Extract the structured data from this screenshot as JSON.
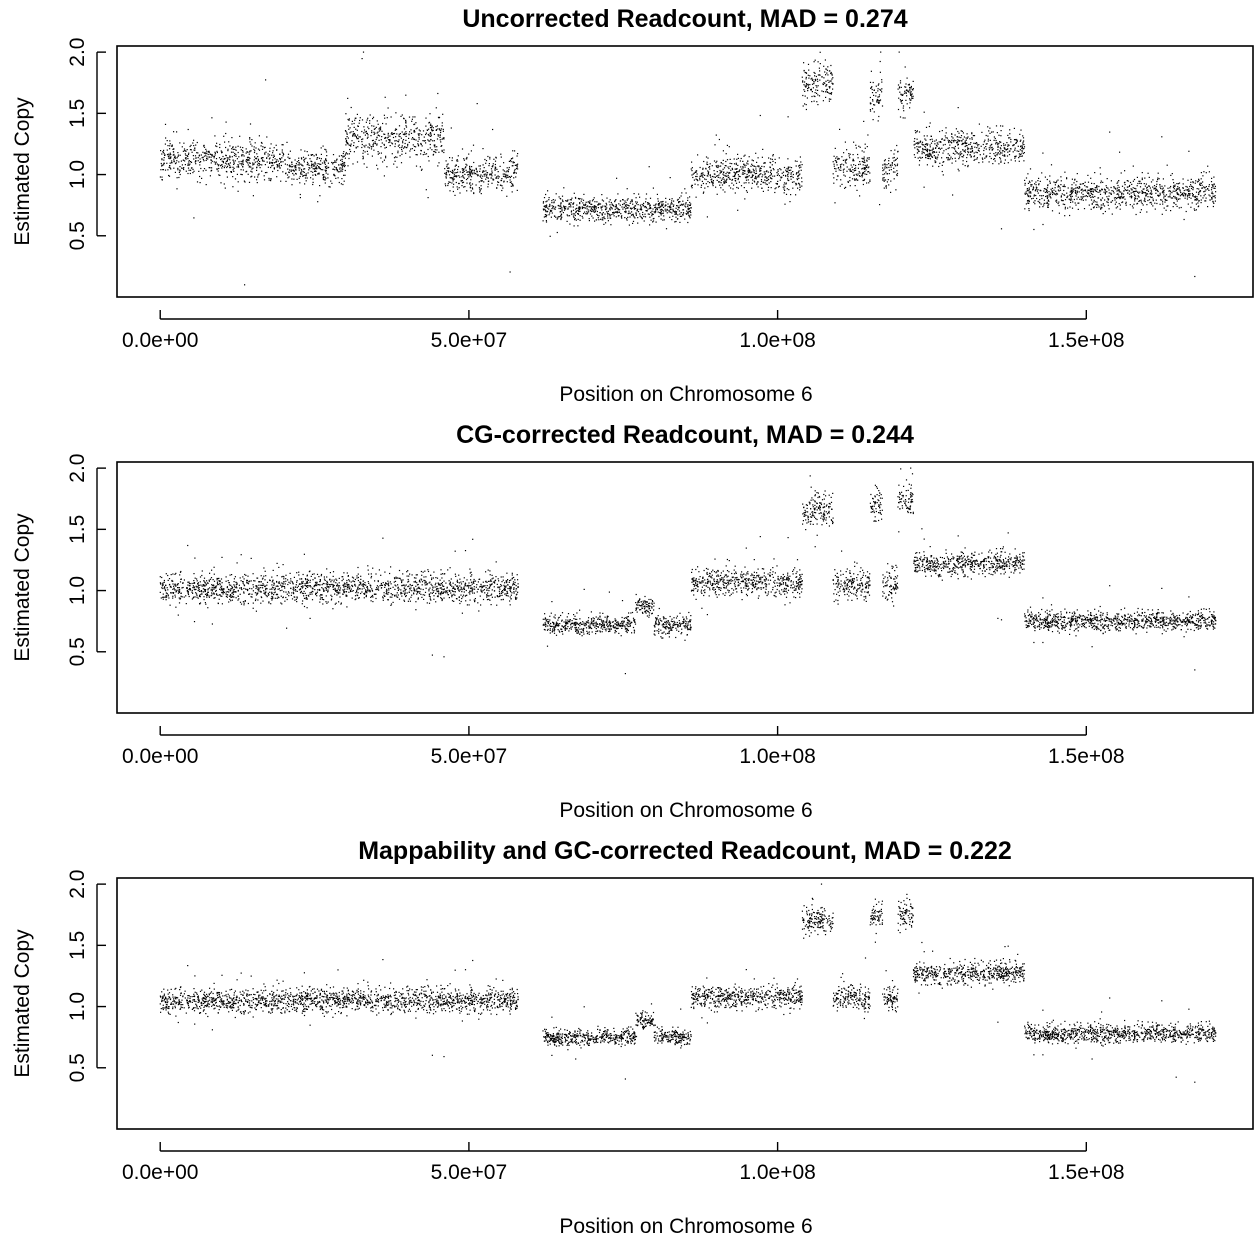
{
  "chart_data": [
    {
      "type": "scatter",
      "title": "Uncorrected Readcount, MAD =  0.274",
      "xlabel": "Position on Chromosome 6",
      "ylabel": "Estimated Copy",
      "xlim": [
        -7000000,
        177000000
      ],
      "ylim": [
        0.0,
        2.05
      ],
      "x_ticks": [
        0,
        50000000,
        100000000,
        150000000
      ],
      "x_tick_labels": [
        "0.0e+00",
        "5.0e+07",
        "1.0e+08",
        "1.5e+08"
      ],
      "y_ticks": [
        0.5,
        1.0,
        1.5,
        2.0
      ],
      "y_tick_labels": [
        "0.5",
        "1.0",
        "1.5",
        "2.0"
      ],
      "mad": 0.274,
      "point_color": "#000000",
      "segments": [
        {
          "x_start": 0,
          "x_end": 20000000,
          "level": 1.12,
          "spread": 0.14
        },
        {
          "x_start": 20000000,
          "x_end": 30000000,
          "level": 1.05,
          "spread": 0.12
        },
        {
          "x_start": 30000000,
          "x_end": 46000000,
          "level": 1.3,
          "spread": 0.18
        },
        {
          "x_start": 46000000,
          "x_end": 58000000,
          "level": 1.0,
          "spread": 0.14
        },
        {
          "x_start": 62000000,
          "x_end": 86000000,
          "level": 0.72,
          "spread": 0.09
        },
        {
          "x_start": 86000000,
          "x_end": 104000000,
          "level": 1.0,
          "spread": 0.13
        },
        {
          "x_start": 104000000,
          "x_end": 109000000,
          "level": 1.75,
          "spread": 0.15
        },
        {
          "x_start": 109000000,
          "x_end": 115000000,
          "level": 1.05,
          "spread": 0.14
        },
        {
          "x_start": 115000000,
          "x_end": 117000000,
          "level": 1.65,
          "spread": 0.18
        },
        {
          "x_start": 117000000,
          "x_end": 119500000,
          "level": 1.05,
          "spread": 0.14
        },
        {
          "x_start": 119500000,
          "x_end": 122000000,
          "level": 1.65,
          "spread": 0.16
        },
        {
          "x_start": 122000000,
          "x_end": 140000000,
          "level": 1.22,
          "spread": 0.13
        },
        {
          "x_start": 140000000,
          "x_end": 171000000,
          "level": 0.85,
          "spread": 0.12
        }
      ]
    },
    {
      "type": "scatter",
      "title": "CG-corrected Readcount, MAD =  0.244",
      "xlabel": "Position on Chromosome 6",
      "ylabel": "Estimated Copy",
      "xlim": [
        -7000000,
        177000000
      ],
      "ylim": [
        0.0,
        2.05
      ],
      "x_ticks": [
        0,
        50000000,
        100000000,
        150000000
      ],
      "x_tick_labels": [
        "0.0e+00",
        "5.0e+07",
        "1.0e+08",
        "1.5e+08"
      ],
      "y_ticks": [
        0.5,
        1.0,
        1.5,
        2.0
      ],
      "y_tick_labels": [
        "0.5",
        "1.0",
        "1.5",
        "2.0"
      ],
      "mad": 0.244,
      "point_color": "#000000",
      "segments": [
        {
          "x_start": 0,
          "x_end": 58000000,
          "level": 1.02,
          "spread": 0.11
        },
        {
          "x_start": 62000000,
          "x_end": 77000000,
          "level": 0.72,
          "spread": 0.07
        },
        {
          "x_start": 77000000,
          "x_end": 80000000,
          "level": 0.87,
          "spread": 0.06
        },
        {
          "x_start": 80000000,
          "x_end": 86000000,
          "level": 0.72,
          "spread": 0.07
        },
        {
          "x_start": 86000000,
          "x_end": 104000000,
          "level": 1.07,
          "spread": 0.1
        },
        {
          "x_start": 104000000,
          "x_end": 109000000,
          "level": 1.65,
          "spread": 0.13
        },
        {
          "x_start": 109000000,
          "x_end": 115000000,
          "level": 1.05,
          "spread": 0.11
        },
        {
          "x_start": 115000000,
          "x_end": 117000000,
          "level": 1.7,
          "spread": 0.13
        },
        {
          "x_start": 117000000,
          "x_end": 119500000,
          "level": 1.05,
          "spread": 0.11
        },
        {
          "x_start": 119500000,
          "x_end": 122000000,
          "level": 1.72,
          "spread": 0.12
        },
        {
          "x_start": 122000000,
          "x_end": 140000000,
          "level": 1.22,
          "spread": 0.09
        },
        {
          "x_start": 140000000,
          "x_end": 171000000,
          "level": 0.75,
          "spread": 0.07
        }
      ]
    },
    {
      "type": "scatter",
      "title": "Mappability and GC-corrected Readcount, MAD =  0.222",
      "xlabel": "Position on Chromosome 6",
      "ylabel": "Estimated Copy",
      "xlim": [
        -7000000,
        177000000
      ],
      "ylim": [
        0.0,
        2.05
      ],
      "x_ticks": [
        0,
        50000000,
        100000000,
        150000000
      ],
      "x_tick_labels": [
        "0.0e+00",
        "5.0e+07",
        "1.0e+08",
        "1.5e+08"
      ],
      "y_ticks": [
        0.5,
        1.0,
        1.5,
        2.0
      ],
      "y_tick_labels": [
        "0.5",
        "1.0",
        "1.5",
        "2.0"
      ],
      "mad": 0.222,
      "point_color": "#000000",
      "segments": [
        {
          "x_start": 0,
          "x_end": 58000000,
          "level": 1.05,
          "spread": 0.09
        },
        {
          "x_start": 62000000,
          "x_end": 77000000,
          "level": 0.75,
          "spread": 0.06
        },
        {
          "x_start": 77000000,
          "x_end": 80000000,
          "level": 0.88,
          "spread": 0.05
        },
        {
          "x_start": 80000000,
          "x_end": 86000000,
          "level": 0.75,
          "spread": 0.06
        },
        {
          "x_start": 86000000,
          "x_end": 104000000,
          "level": 1.08,
          "spread": 0.08
        },
        {
          "x_start": 104000000,
          "x_end": 109000000,
          "level": 1.7,
          "spread": 0.1
        },
        {
          "x_start": 109000000,
          "x_end": 115000000,
          "level": 1.07,
          "spread": 0.09
        },
        {
          "x_start": 115000000,
          "x_end": 117000000,
          "level": 1.75,
          "spread": 0.1
        },
        {
          "x_start": 117000000,
          "x_end": 119500000,
          "level": 1.07,
          "spread": 0.09
        },
        {
          "x_start": 119500000,
          "x_end": 122000000,
          "level": 1.75,
          "spread": 0.1
        },
        {
          "x_start": 122000000,
          "x_end": 140000000,
          "level": 1.27,
          "spread": 0.08
        },
        {
          "x_start": 140000000,
          "x_end": 171000000,
          "level": 0.78,
          "spread": 0.07
        }
      ]
    }
  ]
}
